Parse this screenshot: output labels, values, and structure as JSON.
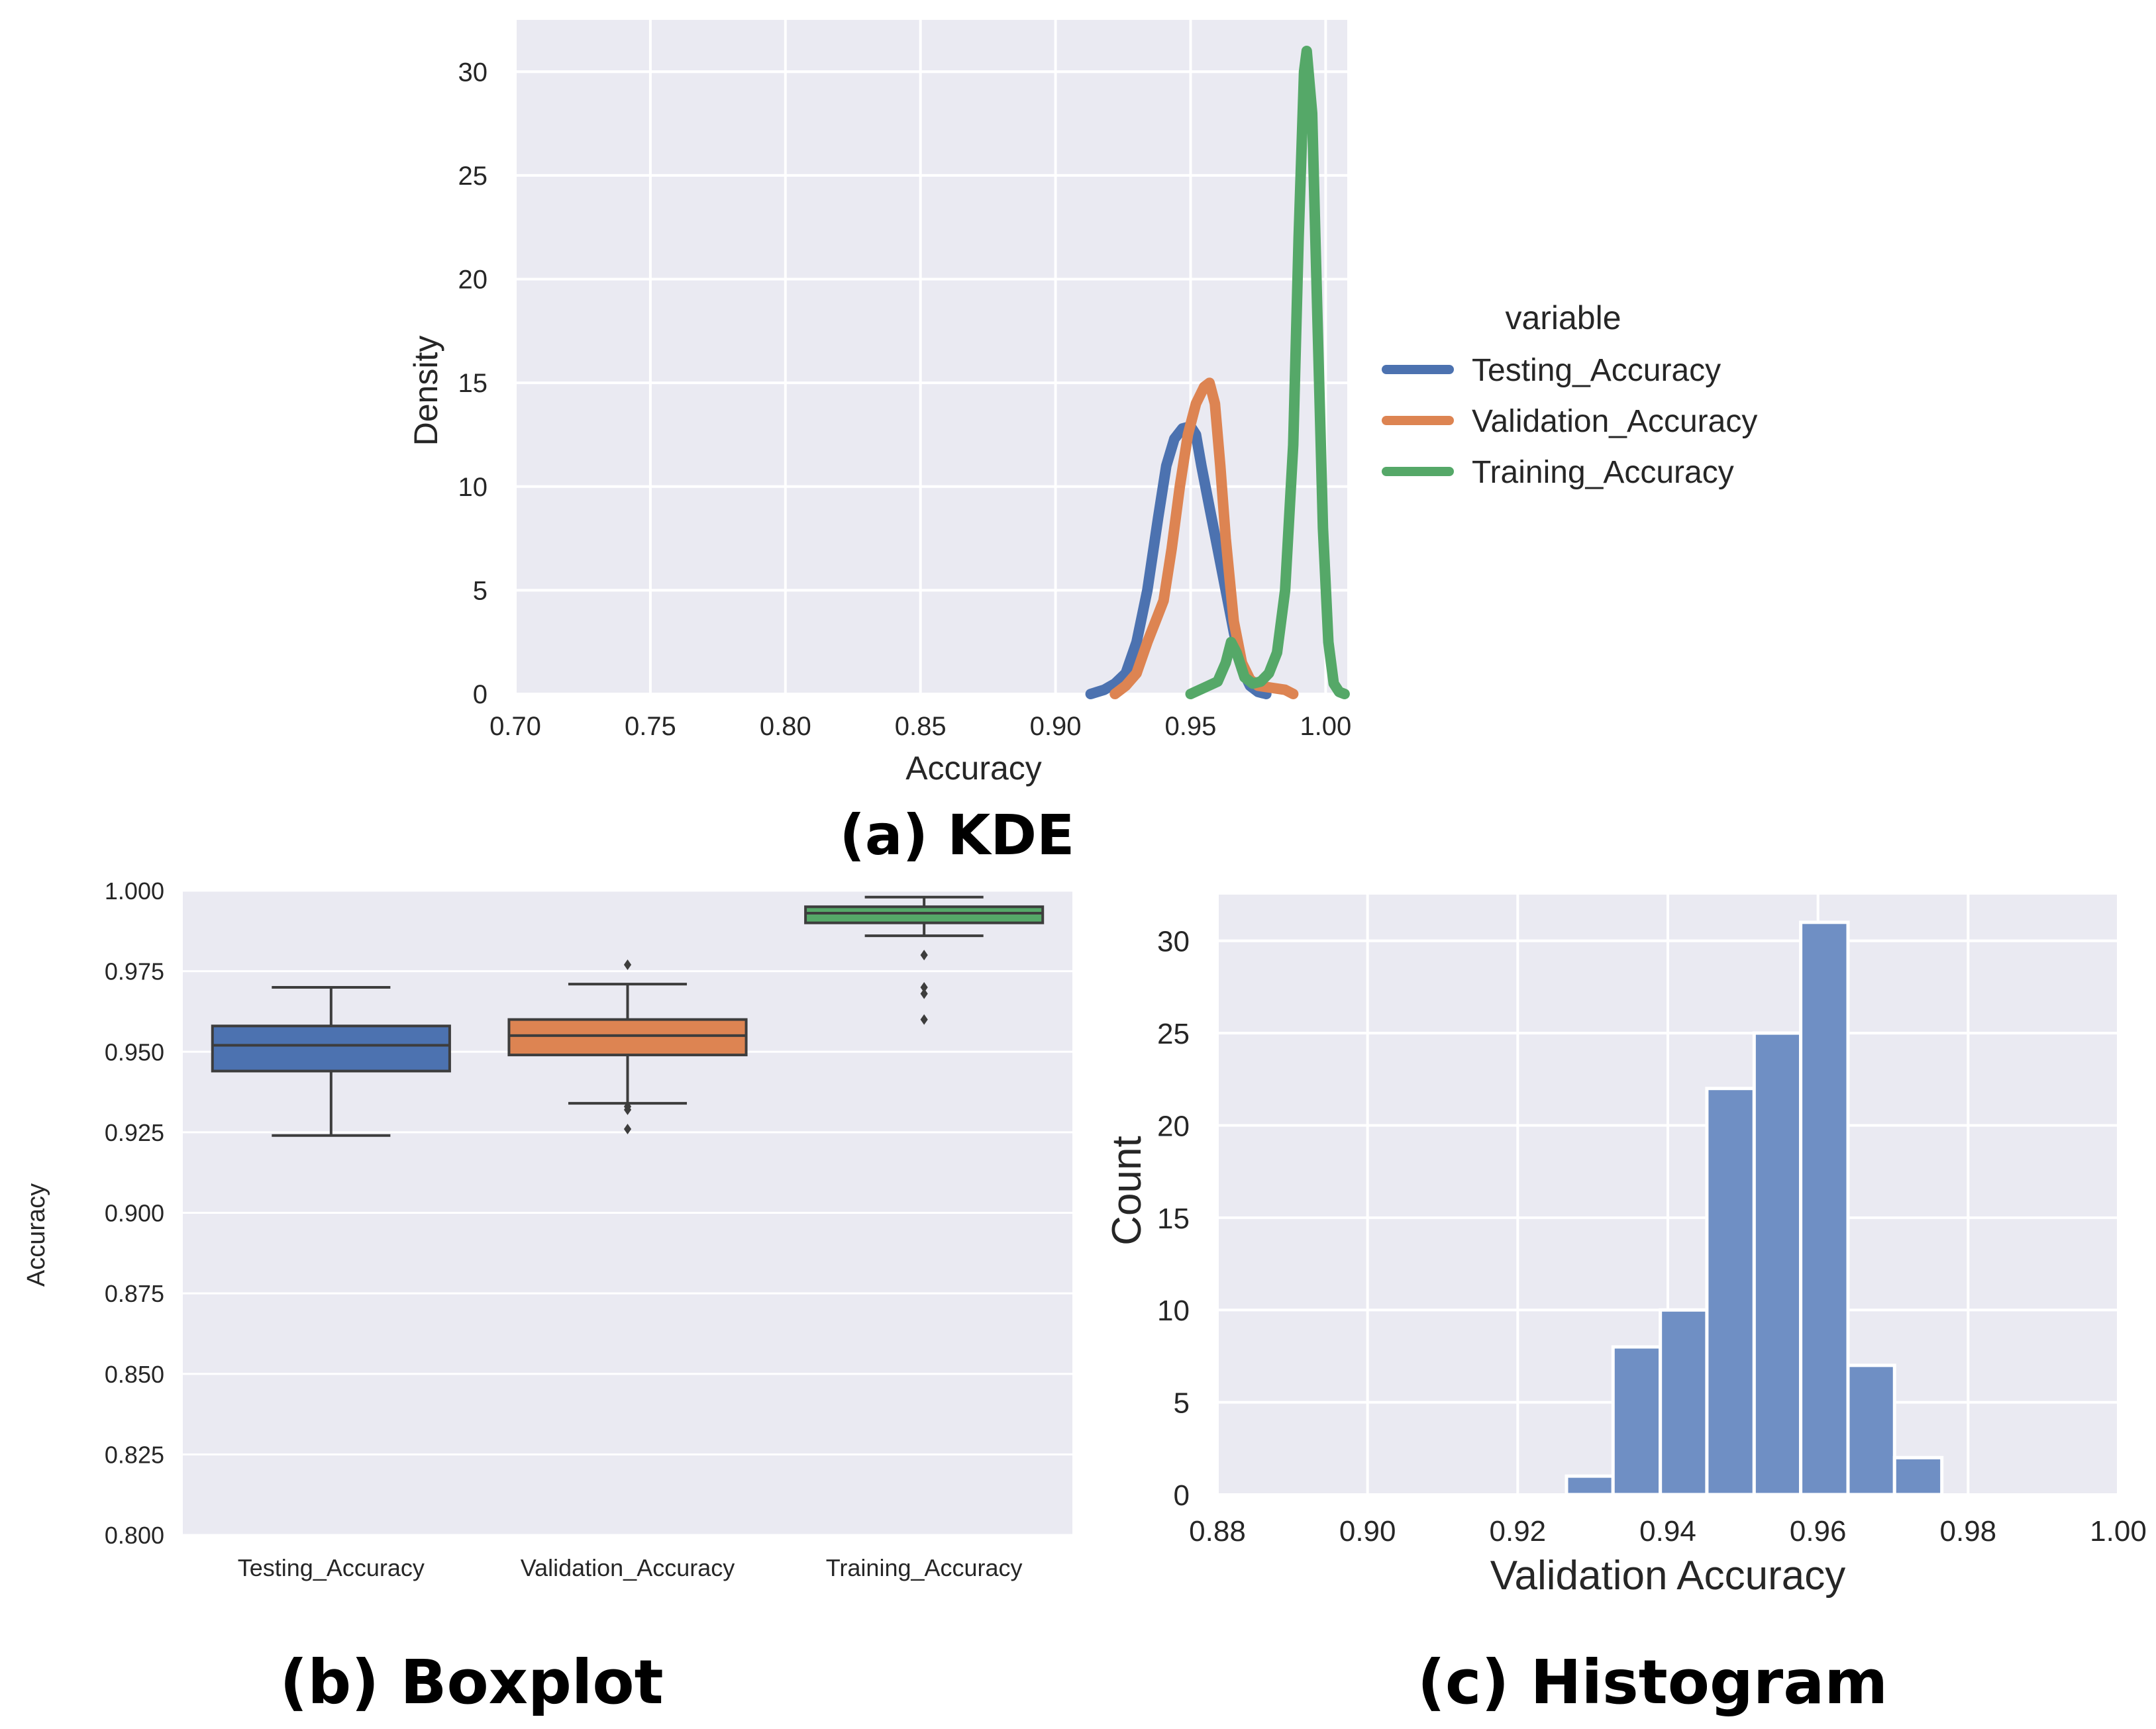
{
  "captions": {
    "kde": "(a) KDE",
    "boxplot": "(b) Boxplot",
    "histogram": "(c) Histogram"
  },
  "colors": {
    "background": "#eaeaf2",
    "grid": "#ffffff",
    "testing": "#4c72b0",
    "validation": "#dd8452",
    "training": "#55a868",
    "hist_bar": "#6f8fc4"
  },
  "chart_data": [
    {
      "id": "kde",
      "type": "line",
      "title": "",
      "xlabel": "Accuracy",
      "ylabel": "Density",
      "xlim": [
        0.7,
        1.008
      ],
      "ylim": [
        0,
        32.5
      ],
      "x_ticks": [
        0.7,
        0.75,
        0.8,
        0.85,
        0.9,
        0.95,
        1.0
      ],
      "x_tick_labels": [
        "0.70",
        "0.75",
        "0.80",
        "0.85",
        "0.90",
        "0.95",
        "1.00"
      ],
      "y_ticks": [
        0,
        5,
        10,
        15,
        20,
        25,
        30
      ],
      "y_tick_labels": [
        "0",
        "5",
        "10",
        "15",
        "20",
        "25",
        "30"
      ],
      "grid": true,
      "legend": {
        "title": "variable",
        "placement": "outside-right"
      },
      "series": [
        {
          "name": "Testing_Accuracy",
          "color": "#4c72b0",
          "x": [
            0.913,
            0.918,
            0.922,
            0.926,
            0.93,
            0.934,
            0.938,
            0.941,
            0.944,
            0.947,
            0.95,
            0.952,
            0.954,
            0.957,
            0.96,
            0.963,
            0.966,
            0.969,
            0.972,
            0.975,
            0.978
          ],
          "y": [
            0.0,
            0.2,
            0.5,
            1.0,
            2.5,
            5.0,
            8.5,
            11.0,
            12.3,
            12.8,
            12.9,
            12.5,
            11.0,
            9.0,
            7.0,
            5.0,
            3.0,
            1.2,
            0.4,
            0.1,
            0.0
          ]
        },
        {
          "name": "Validation_Accuracy",
          "color": "#dd8452",
          "x": [
            0.922,
            0.926,
            0.93,
            0.934,
            0.937,
            0.94,
            0.943,
            0.946,
            0.949,
            0.952,
            0.955,
            0.957,
            0.959,
            0.961,
            0.963,
            0.966,
            0.969,
            0.972,
            0.975,
            0.98,
            0.985,
            0.988
          ],
          "y": [
            0.0,
            0.4,
            1.0,
            2.5,
            3.5,
            4.5,
            7.0,
            10.0,
            12.5,
            14.0,
            14.8,
            15.0,
            14.0,
            11.0,
            7.5,
            3.5,
            1.5,
            0.7,
            0.4,
            0.3,
            0.2,
            0.0
          ]
        },
        {
          "name": "Training_Accuracy",
          "color": "#55a868",
          "x": [
            0.95,
            0.955,
            0.96,
            0.963,
            0.965,
            0.967,
            0.97,
            0.973,
            0.976,
            0.979,
            0.982,
            0.985,
            0.988,
            0.99,
            0.992,
            0.993,
            0.995,
            0.997,
            0.999,
            1.001,
            1.003,
            1.005,
            1.007
          ],
          "y": [
            0.0,
            0.3,
            0.6,
            1.5,
            2.5,
            2.0,
            0.8,
            0.5,
            0.6,
            1.0,
            2.0,
            5.0,
            12.0,
            22.0,
            30.0,
            31.0,
            28.0,
            18.0,
            8.0,
            2.5,
            0.5,
            0.1,
            0.0
          ]
        }
      ]
    },
    {
      "id": "boxplot",
      "type": "box",
      "title": "",
      "xlabel": "",
      "ylabel": "Accuracy",
      "ylim": [
        0.8,
        1.0
      ],
      "y_ticks": [
        0.8,
        0.825,
        0.85,
        0.875,
        0.9,
        0.925,
        0.95,
        0.975,
        1.0
      ],
      "y_tick_labels": [
        "0.800",
        "0.825",
        "0.850",
        "0.875",
        "0.900",
        "0.925",
        "0.950",
        "0.975",
        "1.000"
      ],
      "grid": true,
      "categories": [
        "Testing_Accuracy",
        "Validation_Accuracy",
        "Training_Accuracy"
      ],
      "boxes": [
        {
          "name": "Testing_Accuracy",
          "color": "#4c72b0",
          "whisker_low": 0.924,
          "q1": 0.944,
          "median": 0.952,
          "q3": 0.958,
          "whisker_high": 0.97,
          "outliers": []
        },
        {
          "name": "Validation_Accuracy",
          "color": "#dd8452",
          "whisker_low": 0.934,
          "q1": 0.949,
          "median": 0.955,
          "q3": 0.96,
          "whisker_high": 0.971,
          "outliers": [
            0.977,
            0.933,
            0.932,
            0.926
          ]
        },
        {
          "name": "Training_Accuracy",
          "color": "#55a868",
          "whisker_low": 0.986,
          "q1": 0.99,
          "median": 0.993,
          "q3": 0.995,
          "whisker_high": 0.998,
          "outliers": [
            0.98,
            0.97,
            0.968,
            0.96
          ]
        }
      ]
    },
    {
      "id": "histogram",
      "type": "bar",
      "title": "",
      "xlabel": "Validation Accuracy",
      "ylabel": "Count",
      "xlim": [
        0.88,
        1.0
      ],
      "ylim": [
        0,
        32.5
      ],
      "x_ticks": [
        0.88,
        0.9,
        0.92,
        0.94,
        0.96,
        0.98,
        1.0
      ],
      "x_tick_labels": [
        "0.88",
        "0.90",
        "0.92",
        "0.94",
        "0.96",
        "0.98",
        "1.00"
      ],
      "y_ticks": [
        0,
        5,
        10,
        15,
        20,
        25,
        30
      ],
      "y_tick_labels": [
        "0",
        "5",
        "10",
        "15",
        "20",
        "25",
        "30"
      ],
      "grid": true,
      "bins": [
        {
          "start": 0.9265,
          "end": 0.9327,
          "count": 1
        },
        {
          "start": 0.9327,
          "end": 0.939,
          "count": 8
        },
        {
          "start": 0.939,
          "end": 0.9452,
          "count": 10
        },
        {
          "start": 0.9452,
          "end": 0.9515,
          "count": 22
        },
        {
          "start": 0.9515,
          "end": 0.9577,
          "count": 25
        },
        {
          "start": 0.9577,
          "end": 0.964,
          "count": 31
        },
        {
          "start": 0.964,
          "end": 0.9702,
          "count": 7
        },
        {
          "start": 0.9702,
          "end": 0.9765,
          "count": 2
        }
      ]
    }
  ]
}
